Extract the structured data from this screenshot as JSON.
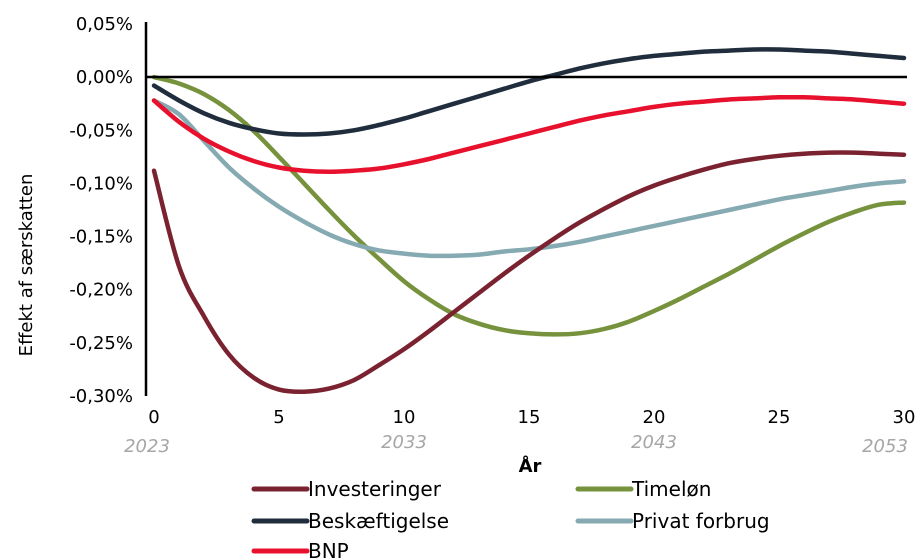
{
  "chart_data": {
    "type": "line",
    "title": "",
    "xlabel": "År",
    "ylabel": "Effekt af særskatten",
    "xlim": [
      0,
      30
    ],
    "ylim": [
      -0.3,
      0.05
    ],
    "x_ticks": [
      "0",
      "5",
      "10",
      "15",
      "20",
      "25",
      "30"
    ],
    "x_tick_values": [
      0,
      5,
      10,
      15,
      20,
      25,
      30
    ],
    "year_labels": [
      {
        "x": 0,
        "label": "2023"
      },
      {
        "x": 10,
        "label": "2033"
      },
      {
        "x": 20,
        "label": "2043"
      },
      {
        "x": 30,
        "label": "2053"
      }
    ],
    "y_ticks": [
      "0,05%",
      "0,00%",
      "-0,05%",
      "-0,10%",
      "-0,15%",
      "-0,20%",
      "-0,25%",
      "-0,30%"
    ],
    "y_tick_values": [
      0.05,
      0.0,
      -0.05,
      -0.1,
      -0.15,
      -0.2,
      -0.25,
      -0.3
    ],
    "grid": false,
    "legend_position": "bottom",
    "x": [
      0,
      1,
      2,
      3,
      4,
      5,
      6,
      7,
      8,
      9,
      10,
      11,
      12,
      13,
      14,
      15,
      16,
      17,
      18,
      19,
      20,
      21,
      22,
      23,
      24,
      25,
      26,
      27,
      28,
      29,
      30
    ],
    "series": [
      {
        "name": "Investeringer",
        "color": "#7a2230",
        "values": [
          -0.088,
          -0.178,
          -0.225,
          -0.261,
          -0.283,
          -0.294,
          -0.296,
          -0.293,
          -0.285,
          -0.271,
          -0.256,
          -0.239,
          -0.221,
          -0.203,
          -0.185,
          -0.168,
          -0.152,
          -0.137,
          -0.124,
          -0.112,
          -0.102,
          -0.094,
          -0.087,
          -0.081,
          -0.077,
          -0.074,
          -0.072,
          -0.071,
          -0.071,
          -0.072,
          -0.073
        ]
      },
      {
        "name": "Timeløn",
        "color": "#76923c",
        "values": [
          0.0,
          -0.006,
          -0.016,
          -0.031,
          -0.051,
          -0.075,
          -0.1,
          -0.125,
          -0.149,
          -0.171,
          -0.192,
          -0.209,
          -0.223,
          -0.232,
          -0.238,
          -0.241,
          -0.242,
          -0.241,
          -0.237,
          -0.23,
          -0.22,
          -0.209,
          -0.197,
          -0.185,
          -0.172,
          -0.159,
          -0.147,
          -0.136,
          -0.127,
          -0.12,
          -0.118
        ]
      },
      {
        "name": "Beskæftigelse",
        "color": "#1f2d3d",
        "values": [
          -0.008,
          -0.022,
          -0.034,
          -0.043,
          -0.049,
          -0.053,
          -0.054,
          -0.053,
          -0.05,
          -0.045,
          -0.039,
          -0.032,
          -0.025,
          -0.018,
          -0.011,
          -0.004,
          0.002,
          0.008,
          0.013,
          0.017,
          0.02,
          0.022,
          0.024,
          0.025,
          0.026,
          0.026,
          0.025,
          0.024,
          0.022,
          0.02,
          0.018
        ]
      },
      {
        "name": "Privat forbrug",
        "color": "#86aab2",
        "values": [
          -0.022,
          -0.035,
          -0.06,
          -0.085,
          -0.105,
          -0.122,
          -0.136,
          -0.148,
          -0.157,
          -0.163,
          -0.166,
          -0.168,
          -0.168,
          -0.167,
          -0.164,
          -0.162,
          -0.159,
          -0.155,
          -0.15,
          -0.145,
          -0.14,
          -0.135,
          -0.13,
          -0.125,
          -0.12,
          -0.115,
          -0.111,
          -0.107,
          -0.103,
          -0.1,
          -0.098
        ]
      },
      {
        "name": "BNP",
        "color": "#e8112d",
        "values": [
          -0.022,
          -0.042,
          -0.058,
          -0.07,
          -0.079,
          -0.085,
          -0.088,
          -0.089,
          -0.088,
          -0.086,
          -0.082,
          -0.077,
          -0.071,
          -0.065,
          -0.059,
          -0.053,
          -0.047,
          -0.041,
          -0.036,
          -0.032,
          -0.028,
          -0.025,
          -0.023,
          -0.021,
          -0.02,
          -0.019,
          -0.019,
          -0.02,
          -0.021,
          -0.023,
          -0.025
        ]
      }
    ]
  }
}
